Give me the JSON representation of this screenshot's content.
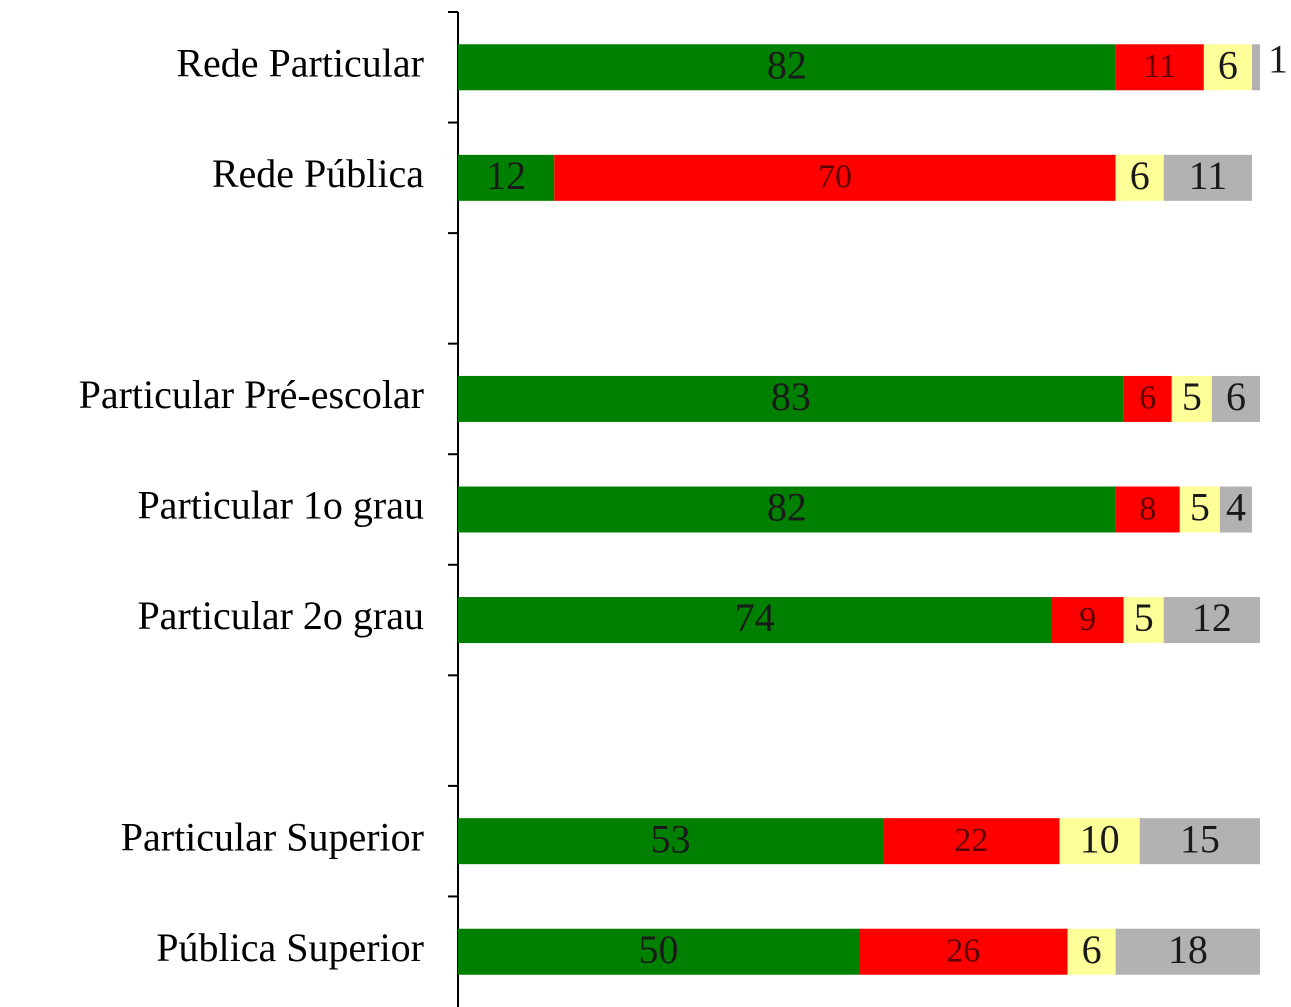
{
  "chart_data": {
    "type": "stacked-barh",
    "categories": [
      "Rede Particular",
      "Rede Pública",
      null,
      "Particular Pré-escolar",
      "Particular 1o grau",
      "Particular 2o grau",
      null,
      "Particular Superior",
      "Pública Superior"
    ],
    "series": [
      {
        "color": "#008000",
        "values": [
          82,
          12,
          null,
          83,
          82,
          74,
          null,
          53,
          50
        ]
      },
      {
        "color": "#ff0000",
        "values": [
          11,
          70,
          null,
          6,
          8,
          9,
          null,
          22,
          26
        ]
      },
      {
        "color": "#ffff99",
        "values": [
          6,
          6,
          null,
          5,
          5,
          5,
          null,
          10,
          6
        ]
      },
      {
        "color": "#b2b2b2",
        "values": [
          1,
          11,
          null,
          6,
          4,
          12,
          null,
          15,
          18
        ]
      }
    ],
    "xlim": [
      0,
      100
    ]
  }
}
